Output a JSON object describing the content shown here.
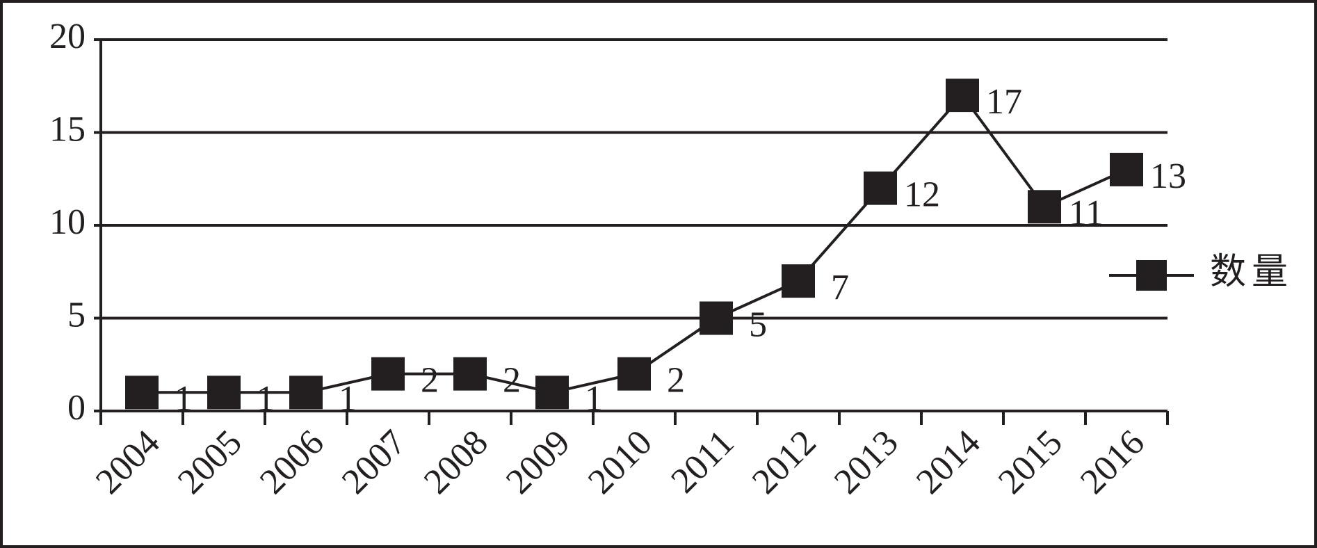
{
  "chart_data": {
    "type": "line",
    "categories": [
      "2004",
      "2005",
      "2006",
      "2007",
      "2008",
      "2009",
      "2010",
      "2011",
      "2012",
      "2013",
      "2014",
      "2015",
      "2016"
    ],
    "series": [
      {
        "name": "数量",
        "color": "#231f20",
        "values": [
          1,
          1,
          1,
          2,
          2,
          1,
          2,
          5,
          7,
          12,
          17,
          11,
          13
        ]
      }
    ],
    "ylim": [
      0,
      20
    ],
    "yticks": [
      0,
      5,
      10,
      15,
      20
    ],
    "grid": true,
    "legend": "right"
  }
}
